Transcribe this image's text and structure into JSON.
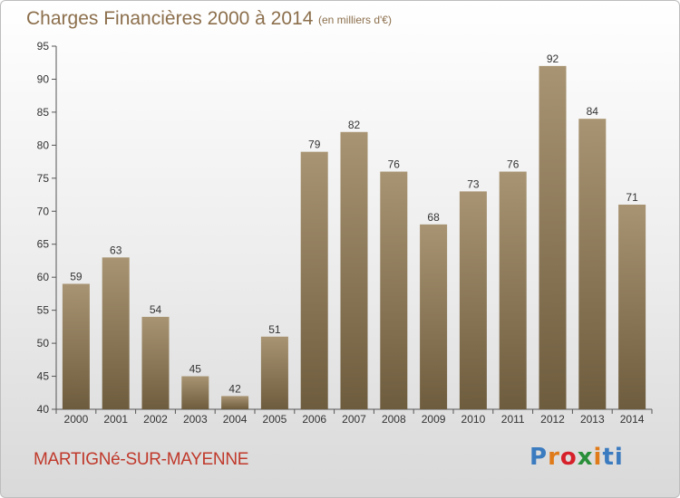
{
  "header": {
    "title": "Charges Financières 2000 à 2014",
    "subtitle": "(en milliers d'€)"
  },
  "footer": {
    "commune": "MARTIGNé-SUR-MAYENNE",
    "logo": {
      "letters": [
        "P",
        "r",
        "o",
        "x",
        "i",
        "t",
        "i"
      ],
      "colors": [
        "#3b7bbf",
        "#e07b1a",
        "#d6202a",
        "#2a8f3a",
        "#e07b1a",
        "#3b7bbf",
        "#3b7bbf"
      ]
    }
  },
  "colors": {
    "bar_top": "#a89472",
    "bar_bottom": "#6e5c3e",
    "title": "#8c6f4c",
    "commune": "#c0392b"
  },
  "chart_data": {
    "type": "bar",
    "categories": [
      "2000",
      "2001",
      "2002",
      "2003",
      "2004",
      "2005",
      "2006",
      "2007",
      "2008",
      "2009",
      "2010",
      "2011",
      "2012",
      "2013",
      "2014"
    ],
    "values": [
      59,
      63,
      54,
      45,
      42,
      51,
      79,
      82,
      76,
      68,
      73,
      76,
      92,
      84,
      71
    ],
    "ylim": [
      40,
      95
    ],
    "yticks": [
      40,
      45,
      50,
      55,
      60,
      65,
      70,
      75,
      80,
      85,
      90,
      95
    ],
    "grid": false,
    "data_labels": true
  }
}
